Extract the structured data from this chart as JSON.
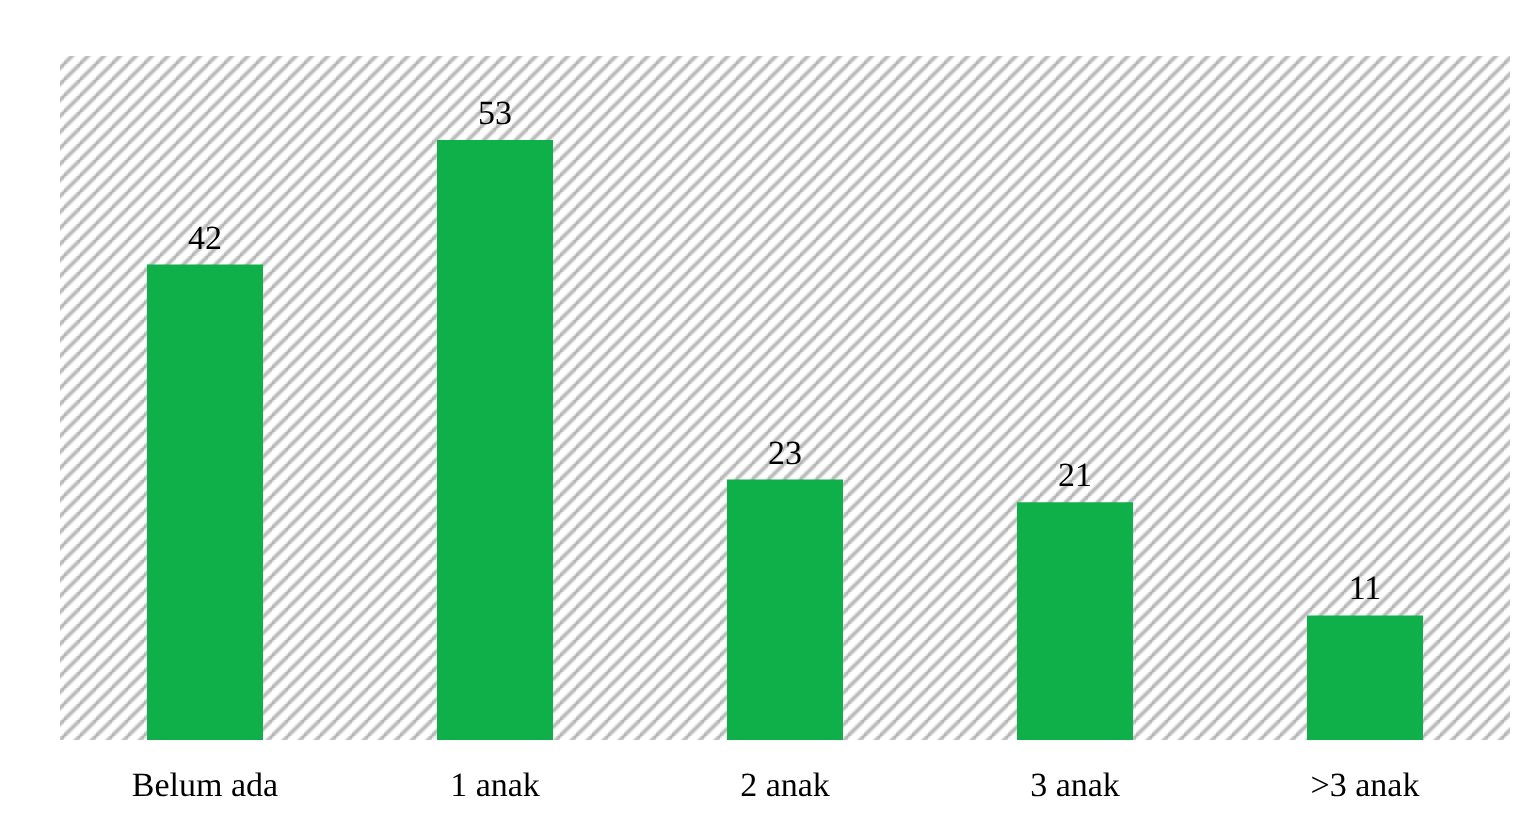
{
  "chart_data": {
    "type": "bar",
    "categories": [
      "Belum ada",
      "1 anak",
      "2 anak",
      "3 anak",
      ">3 anak"
    ],
    "values": [
      42,
      53,
      23,
      21,
      11
    ],
    "color": "#0fb04a",
    "data_labels": true
  }
}
